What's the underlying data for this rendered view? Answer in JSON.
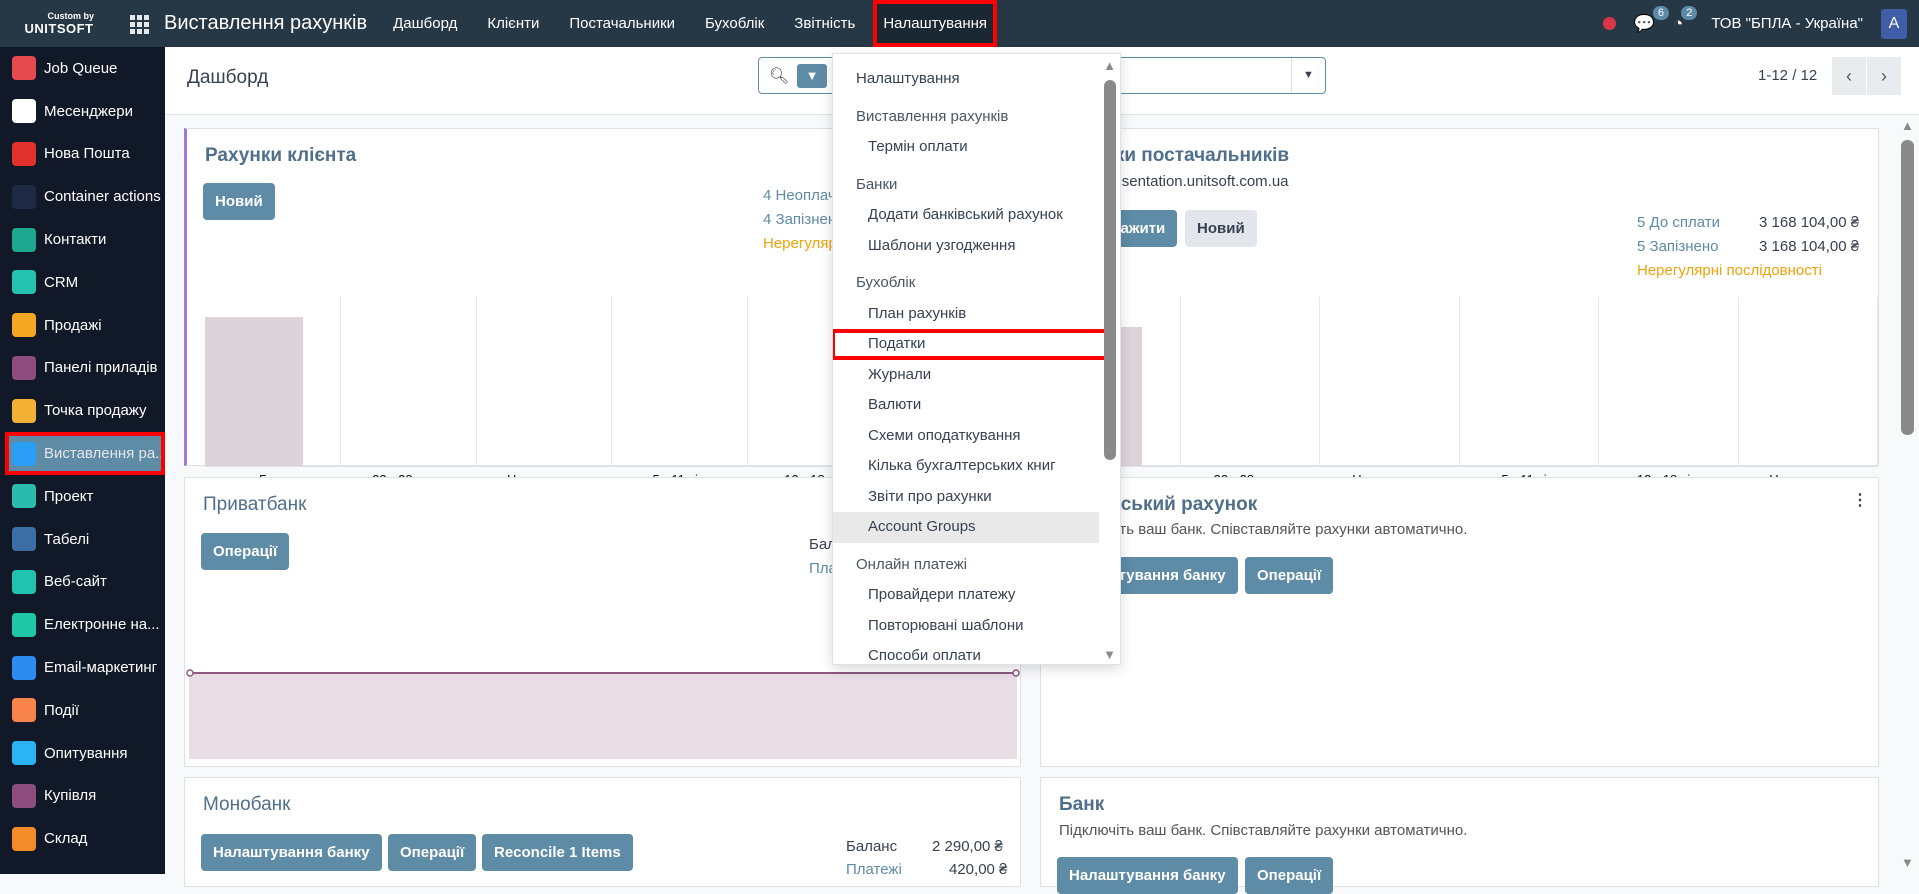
{
  "topbar": {
    "logo_small": "Custom by",
    "logo_brand": "UNITSOFT",
    "app_title": "Виставлення рахунків",
    "nav": [
      "Дашборд",
      "Клієнти",
      "Постачальники",
      "Бухоблік",
      "Звітність",
      "Налаштування"
    ],
    "chat_count": "6",
    "activity_count": "2",
    "company": "ТОВ \"БПЛА - Україна\"",
    "avatar_letter": "A"
  },
  "sidebar": {
    "items": [
      {
        "label": "Job Queue",
        "color": "#e5484d"
      },
      {
        "label": "Месенджери",
        "color": "#ffffff"
      },
      {
        "label": "Нова Пошта",
        "color": "#e0312c"
      },
      {
        "label": "Container actions",
        "color": "#1e2a44"
      },
      {
        "label": "Контакти",
        "color": "#1fa890"
      },
      {
        "label": "CRM",
        "color": "#25c2b0"
      },
      {
        "label": "Продажі",
        "color": "#f5a623"
      },
      {
        "label": "Панелі приладів",
        "color": "#8d4e7e"
      },
      {
        "label": "Точка продажу",
        "color": "#f2b134"
      },
      {
        "label": "Виставлення ра...",
        "color": "#2a9df4",
        "active": true
      },
      {
        "label": "Проект",
        "color": "#2bbbad"
      },
      {
        "label": "Табелі",
        "color": "#3a6ea5"
      },
      {
        "label": "Веб-сайт",
        "color": "#1fc3b0"
      },
      {
        "label": "Електронне на...",
        "color": "#1ec8a6"
      },
      {
        "label": "Email-маркетинг",
        "color": "#2d8cf0"
      },
      {
        "label": "Події",
        "color": "#f7824a"
      },
      {
        "label": "Опитування",
        "color": "#2bb4f5"
      },
      {
        "label": "Купівля",
        "color": "#8d4e7e"
      },
      {
        "label": "Склад",
        "color": "#f28c28"
      }
    ]
  },
  "header": {
    "breadcrumb": "Дашборд",
    "pager": "1-12 / 12"
  },
  "cards": {
    "customer": {
      "title": "Рахунки клієнта",
      "new": "Новий",
      "unpaid": "4 Неоплачено",
      "late": "4 Запізнено",
      "irregular": "Нерегулярні послідовності"
    },
    "vendor": {
      "title": "Рахунки постачальників",
      "email": "bills@presentation.unitsoft.com.ua",
      "upload": "Завантажити",
      "new": "Новий",
      "to_pay": "5 До сплати",
      "to_pay_amount": "3 168 104,00 ₴",
      "late": "5 Запізнено",
      "late_amount": "3 168 104,00 ₴",
      "irregular": "Нерегулярні послідовності"
    },
    "privat": {
      "title": "Приватбанк",
      "ops": "Операції",
      "balance": "Баланс",
      "payments": "Платежі"
    },
    "bank_account": {
      "title": "Банківський рахунок",
      "desc": "Підключіть ваш банк. Співставляйте рахунки автоматично.",
      "settings": "Налаштування банку",
      "ops": "Операції"
    },
    "mono": {
      "title": "Монобанк",
      "settings": "Налаштування банку",
      "ops": "Операції",
      "reconcile": "Reconcile 1 Items",
      "balance": "Баланс",
      "balance_amount": "2 290,00 ₴",
      "payments": "Платежі",
      "payments_amount": "420,00 ₴"
    },
    "bank": {
      "title": "Банк",
      "desc": "Підключіть ваш банк. Співставляйте рахунки автоматично.",
      "settings": "Налаштування банку",
      "ops": "Операції"
    }
  },
  "chart_categories": [
    "Борг",
    "22 - 28 груд.",
    "Цього тижня",
    "5 - 11 січ.",
    "12 - 18 січ.",
    "Не належить"
  ],
  "dropdown": [
    {
      "type": "item",
      "label": "Налаштування",
      "top": true
    },
    {
      "type": "head",
      "label": "Виставлення рахунків"
    },
    {
      "type": "item",
      "label": "Термін оплати"
    },
    {
      "type": "head",
      "label": "Банки"
    },
    {
      "type": "item",
      "label": "Додати банківський рахунок"
    },
    {
      "type": "item",
      "label": "Шаблони узгодження"
    },
    {
      "type": "head",
      "label": "Бухоблік"
    },
    {
      "type": "item",
      "label": "План рахунків"
    },
    {
      "type": "item",
      "label": "Податки",
      "highlight": true
    },
    {
      "type": "item",
      "label": "Журнали"
    },
    {
      "type": "item",
      "label": "Валюти"
    },
    {
      "type": "item",
      "label": "Схеми оподаткування"
    },
    {
      "type": "item",
      "label": "Кілька бухгалтерських книг"
    },
    {
      "type": "item",
      "label": "Звіти про рахунки"
    },
    {
      "type": "item",
      "label": "Account Groups",
      "hover": true
    },
    {
      "type": "head",
      "label": "Онлайн платежі"
    },
    {
      "type": "item",
      "label": "Провайдери платежу"
    },
    {
      "type": "item",
      "label": "Повторювані шаблони"
    },
    {
      "type": "item",
      "label": "Способи оплати"
    }
  ]
}
